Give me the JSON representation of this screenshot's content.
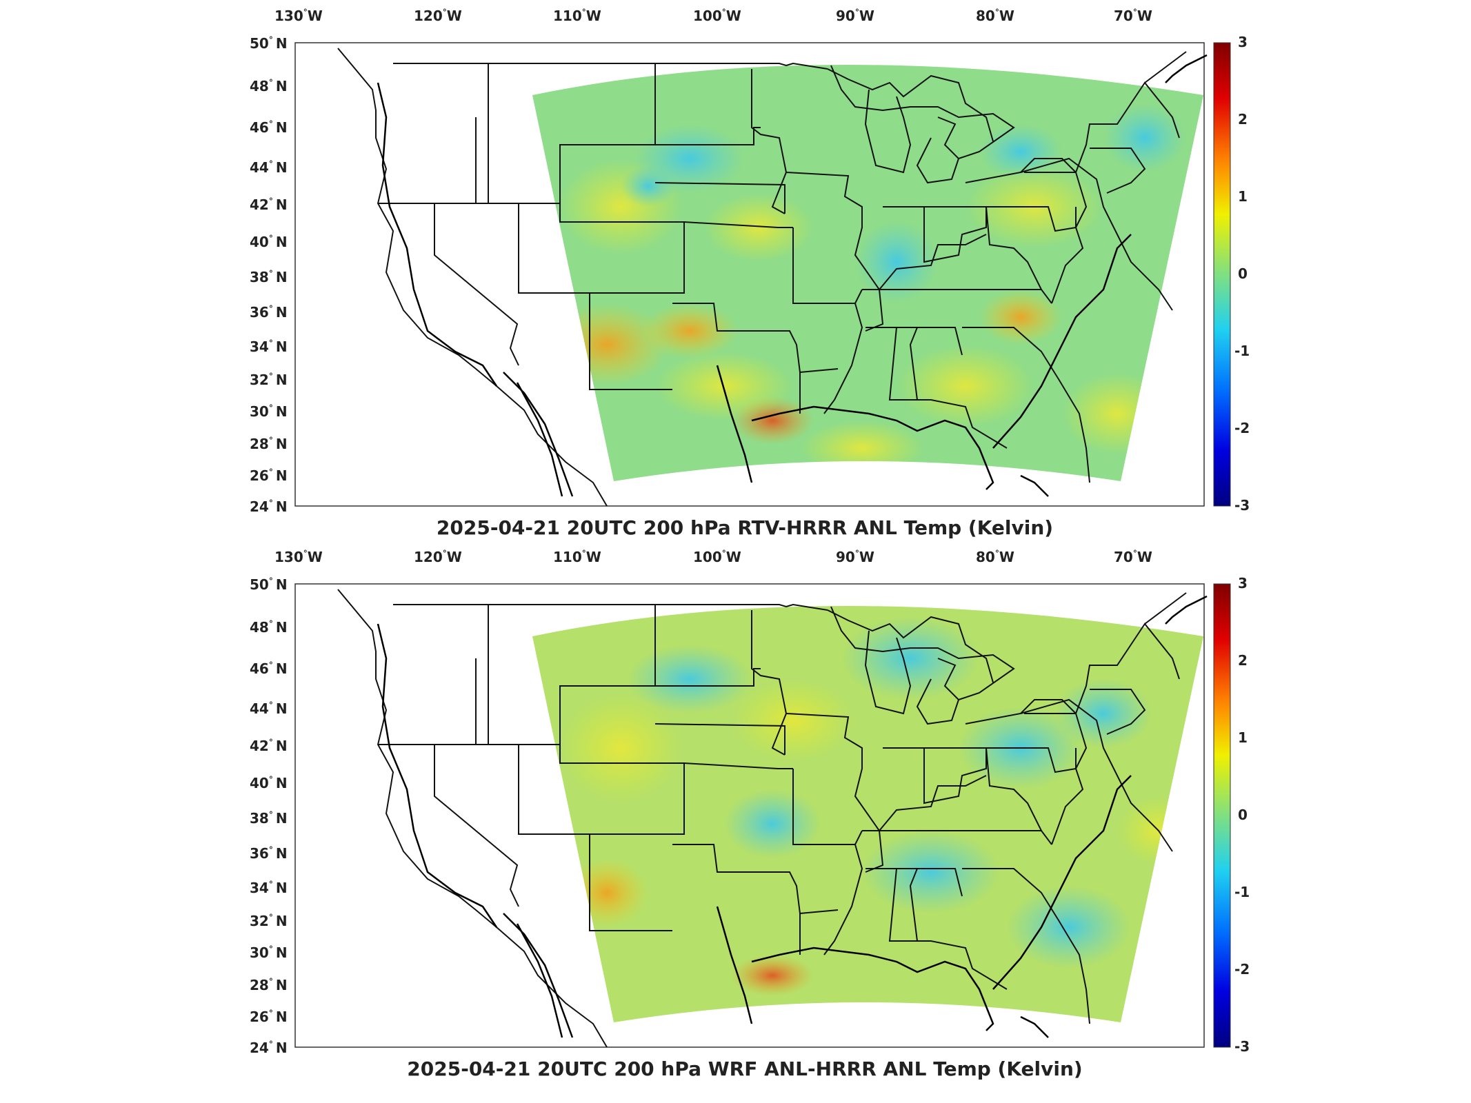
{
  "panels": [
    {
      "title": "2025-04-21 20UTC 200 hPa RTV-HRRR ANL Temp (Kelvin)",
      "lon_labels": [
        "130",
        "120",
        "110",
        "100",
        "90",
        "80",
        "70"
      ],
      "lon_hem": "W",
      "lat_labels": [
        "50",
        "48",
        "46",
        "44",
        "42",
        "40",
        "38",
        "36",
        "34",
        "32",
        "30",
        "28",
        "26",
        "24"
      ],
      "lat_hem": "N",
      "colorbar_ticks": [
        "3",
        "2",
        "1",
        "0",
        "-1",
        "-2",
        "-3"
      ]
    },
    {
      "title": "2025-04-21 20UTC 200 hPa WRF ANL-HRRR ANL Temp (Kelvin)",
      "lon_labels": [
        "130",
        "120",
        "110",
        "100",
        "90",
        "80",
        "70"
      ],
      "lon_hem": "W",
      "lat_labels": [
        "50",
        "48",
        "46",
        "44",
        "42",
        "40",
        "38",
        "36",
        "34",
        "32",
        "30",
        "28",
        "26",
        "24"
      ],
      "lat_hem": "N",
      "colorbar_ticks": [
        "3",
        "2",
        "1",
        "0",
        "-1",
        "-2",
        "-3"
      ]
    }
  ],
  "colors": {
    "positive_max": "#8b0000",
    "zero": "#7fd9a0",
    "negative_max": "#00008b",
    "field_base": "#9be07a"
  }
}
